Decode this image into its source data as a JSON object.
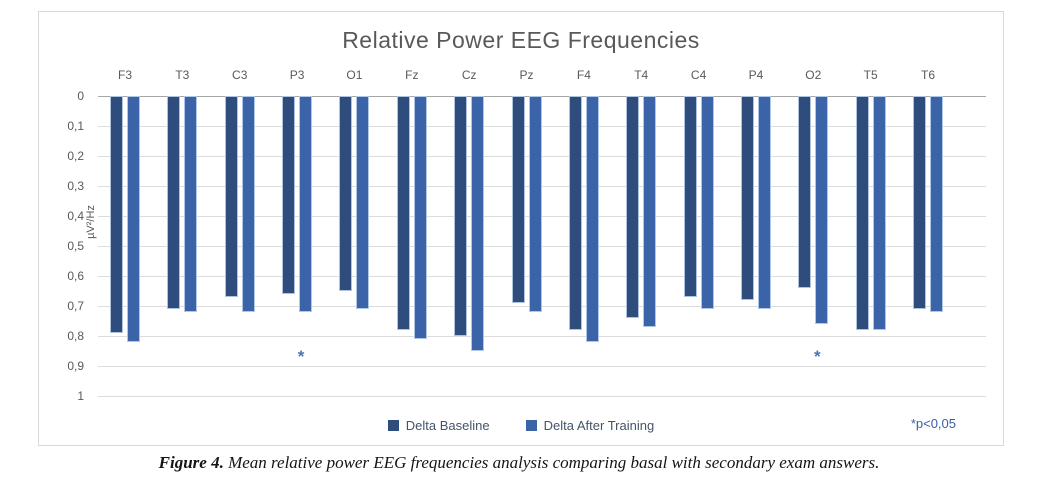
{
  "title": "Relative Power EEG Frequencies",
  "y_axis": {
    "label": "µV²/Hz",
    "tick_labels": [
      "0",
      "0,1",
      "0,2",
      "0,3",
      "0,4",
      "0,5",
      "0,6",
      "0,7",
      "0,8",
      "0,9",
      "1"
    ]
  },
  "legend": {
    "items": [
      {
        "label": "Delta Baseline",
        "color": "#2E4D7C"
      },
      {
        "label": "Delta After Training",
        "color": "#3A63A8"
      }
    ]
  },
  "note": "*p<0,05",
  "caption": {
    "prefix": "Figure 4.",
    "rest": " Mean relative power EEG frequencies analysis comparing basal with secondary exam answers."
  },
  "colors": {
    "baseline_bar": "#2E4D7C",
    "after_bar": "#3A63A8",
    "grid": "#DCDCDC",
    "zero_axis": "#A6A6A6",
    "axis_text": "#595959",
    "legend_text": "#44546A",
    "note_text": "#3B5EA6",
    "significance_asterisk": "#4A74B8",
    "title_text": "#595959"
  },
  "chart_data": {
    "type": "bar",
    "title": "Relative Power EEG Frequencies",
    "xlabel": "",
    "ylabel": "µV²/Hz",
    "ylim": [
      0,
      1
    ],
    "y_axis_inverted": true,
    "grid": true,
    "legend_position": "bottom",
    "decimal_separator": ",",
    "categories": [
      "F3",
      "T3",
      "C3",
      "P3",
      "O1",
      "Fz",
      "Cz",
      "Pz",
      "F4",
      "T4",
      "C4",
      "P4",
      "O2",
      "T5",
      "T6"
    ],
    "series": [
      {
        "name": "Delta Baseline",
        "color": "#2E4D7C",
        "values": [
          0.79,
          0.71,
          0.67,
          0.66,
          0.65,
          0.78,
          0.8,
          0.69,
          0.78,
          0.74,
          0.67,
          0.68,
          0.64,
          0.78,
          0.71
        ]
      },
      {
        "name": "Delta After Training",
        "color": "#3A63A8",
        "values": [
          0.82,
          0.72,
          0.72,
          0.72,
          0.71,
          0.81,
          0.85,
          0.72,
          0.82,
          0.77,
          0.71,
          0.71,
          0.76,
          0.78,
          0.72
        ]
      }
    ],
    "significant_categories": [
      "P3",
      "O2"
    ],
    "significance_note": "*p<0,05"
  }
}
